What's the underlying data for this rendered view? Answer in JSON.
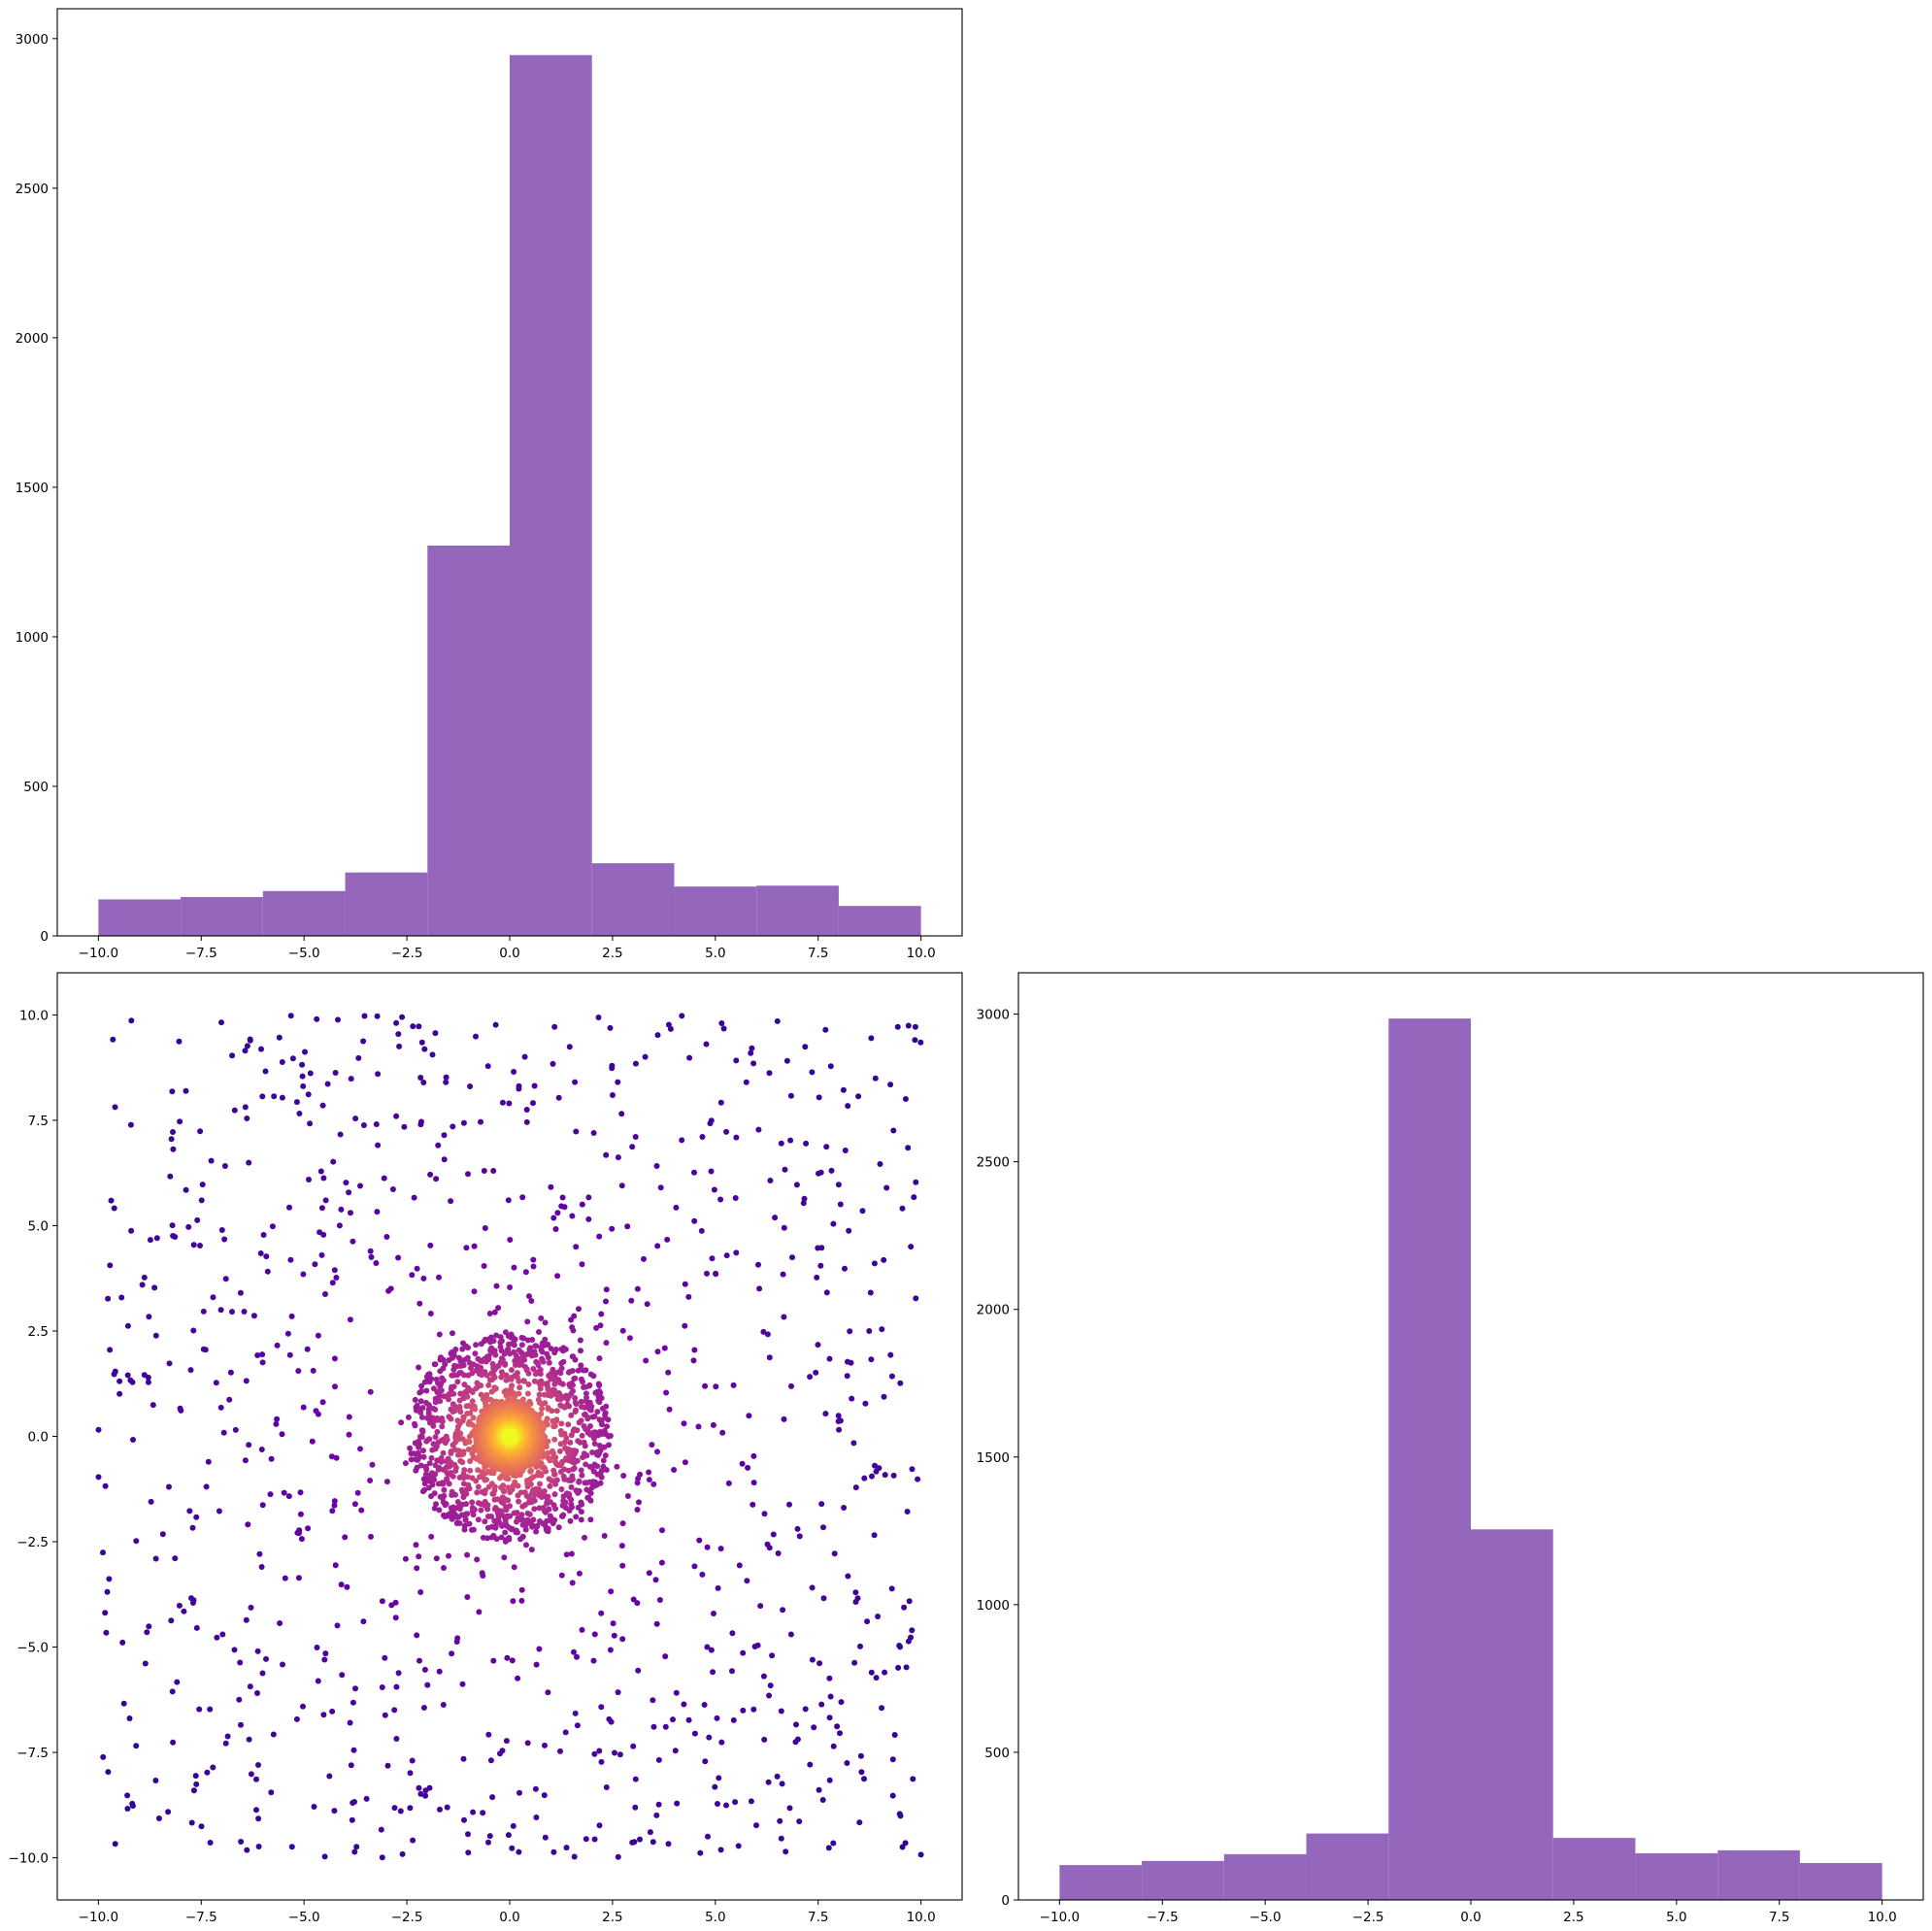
{
  "chart_data": [
    {
      "type": "bar",
      "subplot": "top-left",
      "kind": "histogram",
      "bin_edges": [
        -10.0,
        -8.0,
        -6.0,
        -4.0,
        -2.0,
        0.0,
        2.0,
        4.0,
        6.0,
        8.0,
        10.0
      ],
      "values": [
        122,
        130,
        150,
        212,
        1305,
        2945,
        243,
        165,
        168,
        100
      ],
      "color": "#9467bd",
      "xlim": [
        -11.0,
        11.0
      ],
      "ylim": [
        0,
        3100
      ],
      "xticks": [
        "−10.0",
        "−7.5",
        "−5.0",
        "−2.5",
        "0.0",
        "2.5",
        "5.0",
        "7.5",
        "10.0"
      ],
      "xtick_values": [
        -10,
        -7.5,
        -5,
        -2.5,
        0,
        2.5,
        5,
        7.5,
        10
      ],
      "yticks": [
        "0",
        "500",
        "1000",
        "1500",
        "2000",
        "2500",
        "3000"
      ],
      "ytick_values": [
        0,
        500,
        1000,
        1500,
        2000,
        2500,
        3000
      ],
      "title": "",
      "xlabel": "",
      "ylabel": ""
    },
    {
      "type": "scatter",
      "subplot": "bottom-left",
      "description_of_distribution": "uniform background over [-10,10]^2 plus dense ring of radius ~2.5 and bright concentrated core at origin",
      "colormap": "plasma",
      "colormap_stops": [
        "#0d0887",
        "#6a00a8",
        "#b12a90",
        "#e16462",
        "#fca636",
        "#f0f921"
      ],
      "background_points": 1000,
      "ring_points": 1200,
      "ring_radius_max": 2.5,
      "core_points": 2000,
      "core_radius_max": 0.85,
      "xlim": [
        -11.0,
        11.0
      ],
      "ylim": [
        -11.0,
        11.0
      ],
      "xticks": [
        "−10.0",
        "−7.5",
        "−5.0",
        "−2.5",
        "0.0",
        "2.5",
        "5.0",
        "7.5",
        "10.0"
      ],
      "xtick_values": [
        -10,
        -7.5,
        -5,
        -2.5,
        0,
        2.5,
        5,
        7.5,
        10
      ],
      "yticks": [
        "−10.0",
        "−7.5",
        "−5.0",
        "−2.5",
        "0.0",
        "2.5",
        "5.0",
        "7.5",
        "10.0"
      ],
      "ytick_values": [
        -10,
        -7.5,
        -5,
        -2.5,
        0,
        2.5,
        5,
        7.5,
        10
      ],
      "title": "",
      "xlabel": "",
      "ylabel": ""
    },
    {
      "type": "bar",
      "subplot": "bottom-right",
      "kind": "histogram",
      "bin_edges": [
        -10.0,
        -8.0,
        -6.0,
        -4.0,
        -2.0,
        0.0,
        2.0,
        4.0,
        6.0,
        8.0,
        10.0
      ],
      "values": [
        118,
        132,
        155,
        225,
        2985,
        1255,
        210,
        158,
        168,
        125
      ],
      "color": "#9467bd",
      "xlim": [
        -11.0,
        11.0
      ],
      "ylim": [
        0,
        3140
      ],
      "xticks": [
        "−10.0",
        "−7.5",
        "−5.0",
        "−2.5",
        "0.0",
        "2.5",
        "5.0",
        "7.5",
        "10.0"
      ],
      "xtick_values": [
        -10,
        -7.5,
        -5,
        -2.5,
        0,
        2.5,
        5,
        7.5,
        10
      ],
      "yticks": [
        "0",
        "500",
        "1000",
        "1500",
        "2000",
        "2500",
        "3000"
      ],
      "ytick_values": [
        0,
        500,
        1000,
        1500,
        2000,
        2500,
        3000
      ],
      "title": "",
      "xlabel": "",
      "ylabel": ""
    }
  ]
}
